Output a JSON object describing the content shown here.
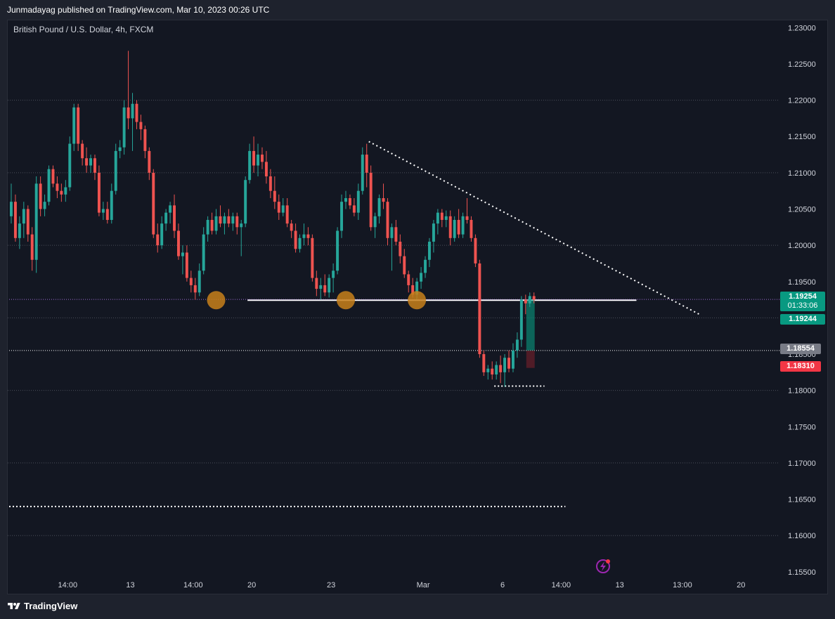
{
  "header": {
    "publisher": "Junmadayag published on TradingView.com, Mar 10, 2023 00:26 UTC"
  },
  "symbol": {
    "label": "British Pound / U.S. Dollar, 4h, FXCM"
  },
  "footer": {
    "brand": "TradingView"
  },
  "price_tags": {
    "last_price": "1.19254",
    "countdown": "01:33:06",
    "bid": "1.19244",
    "gray_level": "1.18554",
    "red_level": "1.18310"
  },
  "colors": {
    "background": "#131722",
    "frame": "#1e222d",
    "up": "#26a69a",
    "down": "#ef5350",
    "grid": "#4a4e59",
    "accent_orange": "#c8801a",
    "text": "#d1d4dc",
    "tag_gray": "#787b86",
    "tag_red": "#f23645",
    "tag_green": "#089981"
  },
  "chart_data": {
    "type": "candlestick",
    "title": "British Pound / U.S. Dollar, 4h, FXCM",
    "y_axis": {
      "ticks": [
        "1.23000",
        "1.22500",
        "1.22000",
        "1.21500",
        "1.21000",
        "1.20500",
        "1.20000",
        "1.19500",
        "1.19000",
        "1.18500",
        "1.18000",
        "1.17500",
        "1.17000",
        "1.16500",
        "1.16000",
        "1.15500"
      ],
      "range": [
        1.1545,
        1.231
      ],
      "grid_levels": [
        1.22,
        1.21,
        1.2,
        1.19,
        1.18,
        1.17,
        1.16
      ]
    },
    "x_axis": {
      "ticks": [
        "14:00",
        "13",
        "14:00",
        "20",
        "23",
        "Mar",
        "6",
        "14:00",
        "13",
        "13:00",
        "20"
      ],
      "tick_bar_index": [
        14,
        29,
        44,
        58,
        77,
        99,
        118,
        132,
        146,
        161,
        175
      ]
    },
    "candles": [
      {
        "o": 1.204,
        "h": 1.2085,
        "l": 1.203,
        "c": 1.206
      },
      {
        "o": 1.206,
        "h": 1.207,
        "l": 1.2005,
        "c": 1.201
      },
      {
        "o": 1.201,
        "h": 1.204,
        "l": 1.1995,
        "c": 1.203
      },
      {
        "o": 1.203,
        "h": 1.206,
        "l": 1.201,
        "c": 1.205
      },
      {
        "o": 1.205,
        "h": 1.2055,
        "l": 1.2005,
        "c": 1.2015
      },
      {
        "o": 1.2015,
        "h": 1.2025,
        "l": 1.1965,
        "c": 1.198
      },
      {
        "o": 1.198,
        "h": 1.2095,
        "l": 1.1962,
        "c": 1.2085
      },
      {
        "o": 1.2085,
        "h": 1.2095,
        "l": 1.204,
        "c": 1.205
      },
      {
        "o": 1.205,
        "h": 1.207,
        "l": 1.204,
        "c": 1.206
      },
      {
        "o": 1.206,
        "h": 1.211,
        "l": 1.2055,
        "c": 1.2105
      },
      {
        "o": 1.2105,
        "h": 1.211,
        "l": 1.208,
        "c": 1.2085
      },
      {
        "o": 1.2085,
        "h": 1.2095,
        "l": 1.2065,
        "c": 1.2075
      },
      {
        "o": 1.2075,
        "h": 1.2085,
        "l": 1.206,
        "c": 1.207
      },
      {
        "o": 1.207,
        "h": 1.209,
        "l": 1.206,
        "c": 1.208
      },
      {
        "o": 1.208,
        "h": 1.215,
        "l": 1.2075,
        "c": 1.214
      },
      {
        "o": 1.214,
        "h": 1.2195,
        "l": 1.213,
        "c": 1.219
      },
      {
        "o": 1.219,
        "h": 1.2195,
        "l": 1.213,
        "c": 1.214
      },
      {
        "o": 1.214,
        "h": 1.2145,
        "l": 1.211,
        "c": 1.212
      },
      {
        "o": 1.212,
        "h": 1.2135,
        "l": 1.21,
        "c": 1.211
      },
      {
        "o": 1.211,
        "h": 1.2125,
        "l": 1.21,
        "c": 1.212
      },
      {
        "o": 1.212,
        "h": 1.2125,
        "l": 1.209,
        "c": 1.21
      },
      {
        "o": 1.21,
        "h": 1.211,
        "l": 1.204,
        "c": 1.2045
      },
      {
        "o": 1.2045,
        "h": 1.206,
        "l": 1.2035,
        "c": 1.205
      },
      {
        "o": 1.205,
        "h": 1.206,
        "l": 1.203,
        "c": 1.2035
      },
      {
        "o": 1.2035,
        "h": 1.2085,
        "l": 1.203,
        "c": 1.2075
      },
      {
        "o": 1.2075,
        "h": 1.214,
        "l": 1.207,
        "c": 1.213
      },
      {
        "o": 1.213,
        "h": 1.2145,
        "l": 1.212,
        "c": 1.2135
      },
      {
        "o": 1.2135,
        "h": 1.22,
        "l": 1.2125,
        "c": 1.219
      },
      {
        "o": 1.219,
        "h": 1.2268,
        "l": 1.216,
        "c": 1.2175
      },
      {
        "o": 1.2175,
        "h": 1.221,
        "l": 1.213,
        "c": 1.2195
      },
      {
        "o": 1.2195,
        "h": 1.22,
        "l": 1.216,
        "c": 1.217
      },
      {
        "o": 1.217,
        "h": 1.218,
        "l": 1.2145,
        "c": 1.216
      },
      {
        "o": 1.216,
        "h": 1.2165,
        "l": 1.212,
        "c": 1.213
      },
      {
        "o": 1.213,
        "h": 1.2135,
        "l": 1.209,
        "c": 1.21
      },
      {
        "o": 1.21,
        "h": 1.2105,
        "l": 1.201,
        "c": 1.2015
      },
      {
        "o": 1.2015,
        "h": 1.203,
        "l": 1.199,
        "c": 1.2
      },
      {
        "o": 1.2,
        "h": 1.204,
        "l": 1.1995,
        "c": 1.203
      },
      {
        "o": 1.203,
        "h": 1.205,
        "l": 1.202,
        "c": 1.2045
      },
      {
        "o": 1.2045,
        "h": 1.206,
        "l": 1.203,
        "c": 1.2055
      },
      {
        "o": 1.2055,
        "h": 1.207,
        "l": 1.201,
        "c": 1.202
      },
      {
        "o": 1.202,
        "h": 1.203,
        "l": 1.198,
        "c": 1.1985
      },
      {
        "o": 1.1985,
        "h": 1.2,
        "l": 1.196,
        "c": 1.199
      },
      {
        "o": 1.199,
        "h": 1.2,
        "l": 1.195,
        "c": 1.1955
      },
      {
        "o": 1.1955,
        "h": 1.1965,
        "l": 1.1935,
        "c": 1.1945
      },
      {
        "o": 1.1945,
        "h": 1.1955,
        "l": 1.1925,
        "c": 1.1935
      },
      {
        "o": 1.1935,
        "h": 1.1975,
        "l": 1.193,
        "c": 1.1965
      },
      {
        "o": 1.1965,
        "h": 1.2025,
        "l": 1.196,
        "c": 1.2015
      },
      {
        "o": 1.2015,
        "h": 1.204,
        "l": 1.2005,
        "c": 1.2035
      },
      {
        "o": 1.2035,
        "h": 1.2045,
        "l": 1.2015,
        "c": 1.202
      },
      {
        "o": 1.202,
        "h": 1.205,
        "l": 1.2015,
        "c": 1.204
      },
      {
        "o": 1.204,
        "h": 1.2055,
        "l": 1.2025,
        "c": 1.203
      },
      {
        "o": 1.203,
        "h": 1.2045,
        "l": 1.2015,
        "c": 1.204
      },
      {
        "o": 1.204,
        "h": 1.205,
        "l": 1.2025,
        "c": 1.203
      },
      {
        "o": 1.203,
        "h": 1.2045,
        "l": 1.202,
        "c": 1.204
      },
      {
        "o": 1.204,
        "h": 1.2045,
        "l": 1.2015,
        "c": 1.2025
      },
      {
        "o": 1.2025,
        "h": 1.2035,
        "l": 1.1985,
        "c": 1.203
      },
      {
        "o": 1.203,
        "h": 1.2095,
        "l": 1.2025,
        "c": 1.209
      },
      {
        "o": 1.209,
        "h": 1.214,
        "l": 1.2085,
        "c": 1.213
      },
      {
        "o": 1.213,
        "h": 1.215,
        "l": 1.21,
        "c": 1.211
      },
      {
        "o": 1.211,
        "h": 1.214,
        "l": 1.2095,
        "c": 1.2125
      },
      {
        "o": 1.2125,
        "h": 1.2135,
        "l": 1.2105,
        "c": 1.2115
      },
      {
        "o": 1.2115,
        "h": 1.213,
        "l": 1.2085,
        "c": 1.2095
      },
      {
        "o": 1.2095,
        "h": 1.2105,
        "l": 1.2065,
        "c": 1.2075
      },
      {
        "o": 1.2075,
        "h": 1.2095,
        "l": 1.205,
        "c": 1.206
      },
      {
        "o": 1.206,
        "h": 1.207,
        "l": 1.2035,
        "c": 1.2045
      },
      {
        "o": 1.2045,
        "h": 1.2065,
        "l": 1.204,
        "c": 1.2055
      },
      {
        "o": 1.2055,
        "h": 1.2065,
        "l": 1.2025,
        "c": 1.203
      },
      {
        "o": 1.203,
        "h": 1.2035,
        "l": 1.201,
        "c": 1.202
      },
      {
        "o": 1.202,
        "h": 1.203,
        "l": 1.199,
        "c": 1.1995
      },
      {
        "o": 1.1995,
        "h": 1.2015,
        "l": 1.199,
        "c": 1.201
      },
      {
        "o": 1.201,
        "h": 1.203,
        "l": 1.2,
        "c": 1.2015
      },
      {
        "o": 1.2015,
        "h": 1.2025,
        "l": 1.2,
        "c": 1.201
      },
      {
        "o": 1.201,
        "h": 1.2015,
        "l": 1.195,
        "c": 1.1955
      },
      {
        "o": 1.1955,
        "h": 1.1965,
        "l": 1.193,
        "c": 1.194
      },
      {
        "o": 1.194,
        "h": 1.1955,
        "l": 1.1925,
        "c": 1.1945
      },
      {
        "o": 1.1945,
        "h": 1.196,
        "l": 1.193,
        "c": 1.1935
      },
      {
        "o": 1.1935,
        "h": 1.196,
        "l": 1.1928,
        "c": 1.1955
      },
      {
        "o": 1.1955,
        "h": 1.1975,
        "l": 1.1935,
        "c": 1.1965
      },
      {
        "o": 1.1965,
        "h": 1.2025,
        "l": 1.196,
        "c": 1.202
      },
      {
        "o": 1.202,
        "h": 1.207,
        "l": 1.201,
        "c": 1.206
      },
      {
        "o": 1.206,
        "h": 1.2075,
        "l": 1.205,
        "c": 1.2065
      },
      {
        "o": 1.2065,
        "h": 1.207,
        "l": 1.205,
        "c": 1.2055
      },
      {
        "o": 1.2055,
        "h": 1.2065,
        "l": 1.204,
        "c": 1.2045
      },
      {
        "o": 1.2045,
        "h": 1.2085,
        "l": 1.2035,
        "c": 1.2075
      },
      {
        "o": 1.2075,
        "h": 1.2135,
        "l": 1.207,
        "c": 1.2125
      },
      {
        "o": 1.2125,
        "h": 1.214,
        "l": 1.208,
        "c": 1.21
      },
      {
        "o": 1.21,
        "h": 1.211,
        "l": 1.202,
        "c": 1.2025
      },
      {
        "o": 1.2025,
        "h": 1.2045,
        "l": 1.201,
        "c": 1.204
      },
      {
        "o": 1.204,
        "h": 1.207,
        "l": 1.203,
        "c": 1.2065
      },
      {
        "o": 1.2065,
        "h": 1.2085,
        "l": 1.205,
        "c": 1.206
      },
      {
        "o": 1.206,
        "h": 1.2065,
        "l": 1.2,
        "c": 1.201
      },
      {
        "o": 1.201,
        "h": 1.203,
        "l": 1.1965,
        "c": 1.2025
      },
      {
        "o": 1.2025,
        "h": 1.2035,
        "l": 1.2,
        "c": 1.2005
      },
      {
        "o": 1.2005,
        "h": 1.2015,
        "l": 1.1975,
        "c": 1.1985
      },
      {
        "o": 1.1985,
        "h": 1.1995,
        "l": 1.1955,
        "c": 1.196
      },
      {
        "o": 1.196,
        "h": 1.1965,
        "l": 1.1935,
        "c": 1.1945
      },
      {
        "o": 1.1945,
        "h": 1.1955,
        "l": 1.1928,
        "c": 1.1932
      },
      {
        "o": 1.1932,
        "h": 1.1955,
        "l": 1.1925,
        "c": 1.195
      },
      {
        "o": 1.195,
        "h": 1.197,
        "l": 1.194,
        "c": 1.1962
      },
      {
        "o": 1.1962,
        "h": 1.1985,
        "l": 1.1955,
        "c": 1.198
      },
      {
        "o": 1.198,
        "h": 1.201,
        "l": 1.197,
        "c": 1.2005
      },
      {
        "o": 1.2005,
        "h": 1.2035,
        "l": 1.199,
        "c": 1.203
      },
      {
        "o": 1.203,
        "h": 1.205,
        "l": 1.2015,
        "c": 1.2045
      },
      {
        "o": 1.2045,
        "h": 1.205,
        "l": 1.2025,
        "c": 1.2035
      },
      {
        "o": 1.2035,
        "h": 1.2048,
        "l": 1.2025,
        "c": 1.204
      },
      {
        "o": 1.204,
        "h": 1.2048,
        "l": 1.2,
        "c": 1.201
      },
      {
        "o": 1.201,
        "h": 1.204,
        "l": 1.2005,
        "c": 1.2035
      },
      {
        "o": 1.2035,
        "h": 1.205,
        "l": 1.201,
        "c": 1.2015
      },
      {
        "o": 1.2015,
        "h": 1.2045,
        "l": 1.201,
        "c": 1.204
      },
      {
        "o": 1.204,
        "h": 1.2065,
        "l": 1.203,
        "c": 1.2035
      },
      {
        "o": 1.2035,
        "h": 1.204,
        "l": 1.2005,
        "c": 1.201
      },
      {
        "o": 1.201,
        "h": 1.2015,
        "l": 1.197,
        "c": 1.1975
      },
      {
        "o": 1.1975,
        "h": 1.198,
        "l": 1.1845,
        "c": 1.185
      },
      {
        "o": 1.185,
        "h": 1.1855,
        "l": 1.182,
        "c": 1.1825
      },
      {
        "o": 1.1825,
        "h": 1.1835,
        "l": 1.1815,
        "c": 1.183
      },
      {
        "o": 1.183,
        "h": 1.184,
        "l": 1.1815,
        "c": 1.1822
      },
      {
        "o": 1.1822,
        "h": 1.184,
        "l": 1.1815,
        "c": 1.1835
      },
      {
        "o": 1.1835,
        "h": 1.1848,
        "l": 1.181,
        "c": 1.1825
      },
      {
        "o": 1.1825,
        "h": 1.185,
        "l": 1.1805,
        "c": 1.1845
      },
      {
        "o": 1.1845,
        "h": 1.1855,
        "l": 1.1825,
        "c": 1.183
      },
      {
        "o": 1.183,
        "h": 1.1865,
        "l": 1.1825,
        "c": 1.1855
      },
      {
        "o": 1.1855,
        "h": 1.188,
        "l": 1.1845,
        "c": 1.187
      },
      {
        "o": 1.187,
        "h": 1.193,
        "l": 1.186,
        "c": 1.1925
      },
      {
        "o": 1.1925,
        "h": 1.1932,
        "l": 1.1905,
        "c": 1.192
      },
      {
        "o": 1.192,
        "h": 1.1935,
        "l": 1.1915,
        "c": 1.193
      },
      {
        "o": 1.193,
        "h": 1.1935,
        "l": 1.192,
        "c": 1.1925
      }
    ],
    "horizontal_lines": [
      {
        "price": 1.19244,
        "style": "solid",
        "color": "#ffffff",
        "from_bar": 57,
        "to_bar": 150
      },
      {
        "price": 1.1806,
        "style": "dotted",
        "color": "#ffffff",
        "from_bar": 116,
        "to_bar": 128
      },
      {
        "price": 1.164,
        "style": "dotted",
        "color": "#ffffff",
        "from_bar": 0,
        "to_bar": 133
      },
      {
        "price": 1.1855,
        "style": "dotted-thin",
        "color": "#ffffff",
        "from_bar": 0,
        "to_bar": 200
      },
      {
        "price": 1.19254,
        "style": "dotted-thin",
        "color": "#9c6bd1",
        "from_bar": 0,
        "to_bar": 200
      }
    ],
    "trendline": {
      "from": {
        "bar": 86,
        "price": 1.2143
      },
      "to": {
        "bar": 165,
        "price": 1.1905
      },
      "style": "dotted"
    },
    "markers": [
      {
        "bar": 49,
        "price": 1.19244,
        "color": "#c8801a"
      },
      {
        "bar": 80,
        "price": 1.19244,
        "color": "#c8801a"
      },
      {
        "bar": 97,
        "price": 1.19244,
        "color": "#c8801a"
      }
    ],
    "highlight_boxes": [
      {
        "from_bar": 124,
        "to_bar": 125,
        "top": 1.1925,
        "bottom": 1.1855,
        "color": "#089981"
      },
      {
        "from_bar": 124,
        "to_bar": 125,
        "top": 1.1855,
        "bottom": 1.1831,
        "color": "#7a1f2b"
      }
    ],
    "grid": true,
    "legend": "none"
  }
}
